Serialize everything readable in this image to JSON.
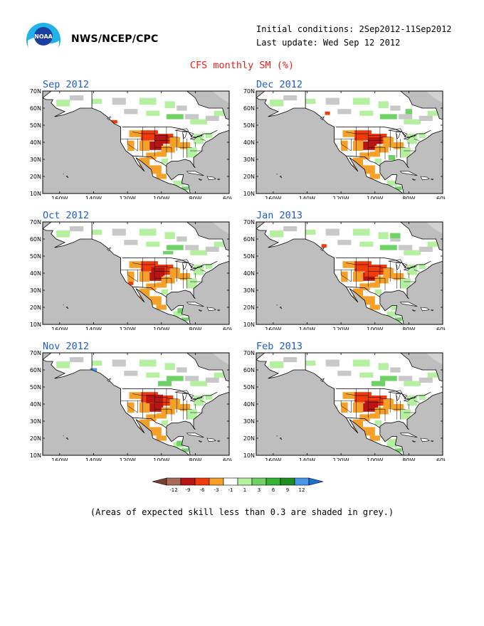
{
  "header": {
    "agency": "NWS/NCEP/CPC",
    "logo_text": "NOAA",
    "initial_conditions": "Initial conditions: 2Sep2012-11Sep2012",
    "last_update": "Last update: Wed Sep 12 2012",
    "title": "CFS monthly SM (%)"
  },
  "colors": {
    "title": "#e2231a",
    "panel_title": "#1e5bd6",
    "ocean": "#bebebe",
    "land_grey": "#c8c8c8",
    "land_white": "#ffffff"
  },
  "axes": {
    "y_ticks": [
      "70N",
      "60N",
      "50N",
      "40N",
      "30N",
      "20N",
      "10N"
    ],
    "x_ticks": [
      "160W",
      "140W",
      "120W",
      "100W",
      "80W",
      "60W"
    ]
  },
  "panels": [
    {
      "title": "Sep 2012"
    },
    {
      "title": "Dec 2012"
    },
    {
      "title": "Oct 2012"
    },
    {
      "title": "Jan 2013"
    },
    {
      "title": "Nov 2012"
    },
    {
      "title": "Feb 2013"
    }
  ],
  "colorbar": {
    "labels": [
      "-12",
      "-9",
      "-6",
      "-3",
      "-1",
      "1",
      "3",
      "6",
      "9",
      "12"
    ],
    "colors": [
      "#7b3f2e",
      "#a86a5a",
      "#b81414",
      "#f03c0a",
      "#f5a029",
      "#ffffff",
      "#b4f0a0",
      "#6ed264",
      "#32b432",
      "#1e8c1e",
      "#4696e6",
      "#1e6ed2"
    ]
  },
  "footnote": "(Areas of expected skill less than 0.3 are shaded in grey.)"
}
